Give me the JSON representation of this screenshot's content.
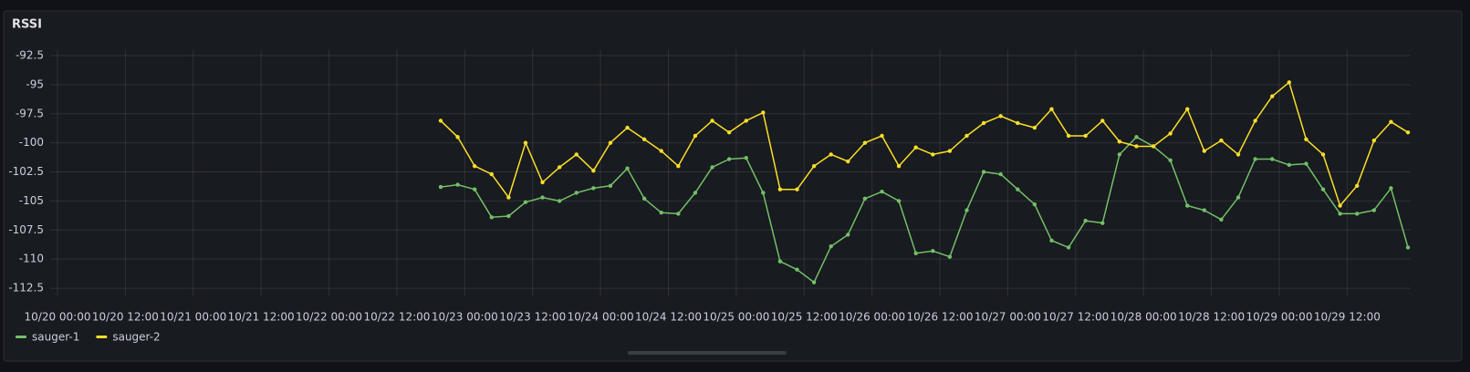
{
  "chart_data": {
    "type": "line",
    "title": "RSSI",
    "x": [
      "10/22 19:45",
      "10/22 22:45",
      "10/23 01:45",
      "10/23 04:45",
      "10/23 07:45",
      "10/23 10:45",
      "10/23 13:45",
      "10/23 16:45",
      "10/23 19:45",
      "10/23 22:45",
      "10/24 01:45",
      "10/24 04:45",
      "10/24 07:45",
      "10/24 10:45",
      "10/24 13:45",
      "10/24 16:45",
      "10/24 19:45",
      "10/24 22:45",
      "10/25 01:45",
      "10/25 04:45",
      "10/25 07:45",
      "10/25 10:45",
      "10/25 13:45",
      "10/25 16:45",
      "10/25 19:45",
      "10/25 22:45",
      "10/26 01:45",
      "10/26 04:45",
      "10/26 07:45",
      "10/26 10:45",
      "10/26 13:45",
      "10/26 16:45",
      "10/26 19:45",
      "10/26 22:45",
      "10/27 01:45",
      "10/27 04:45",
      "10/27 07:45",
      "10/27 10:45",
      "10/27 13:45",
      "10/27 16:45",
      "10/27 19:45",
      "10/27 22:45",
      "10/28 01:45",
      "10/28 04:45",
      "10/28 07:45",
      "10/28 10:45",
      "10/28 13:45",
      "10/28 16:45",
      "10/28 19:45",
      "10/28 22:45",
      "10/29 01:45",
      "10/29 04:45",
      "10/29 07:45",
      "10/29 10:45",
      "10/29 13:45",
      "10/29 16:45",
      "10/29 19:45",
      "10/29 22:45"
    ],
    "series": [
      {
        "name": "sauger-1",
        "color": "#73bf69",
        "values": [
          -103.8,
          -103.6,
          -104.0,
          -106.4,
          -106.3,
          -105.1,
          -104.7,
          -105.0,
          -104.3,
          -103.9,
          -103.7,
          -102.2,
          -104.8,
          -106.0,
          -106.1,
          -104.3,
          -102.1,
          -101.4,
          -101.3,
          -104.3,
          -110.2,
          -110.9,
          -112.0,
          -108.9,
          -107.9,
          -104.8,
          -104.2,
          -105.0,
          -109.5,
          -109.3,
          -109.8,
          -105.8,
          -102.5,
          -102.7,
          -104.0,
          -105.3,
          -108.4,
          -109.0,
          -106.7,
          -106.9,
          -101.0,
          -99.5,
          -100.3,
          -101.5,
          -105.4,
          -105.8,
          -106.6,
          -104.7,
          -101.4,
          -101.4,
          -101.9,
          -101.8,
          -104.0,
          -106.1,
          -106.1,
          -105.8,
          -103.9,
          -109.0
        ]
      },
      {
        "name": "sauger-2",
        "color": "#fade2a",
        "values": [
          -98.1,
          -99.5,
          -102.0,
          -102.7,
          -104.7,
          -100.0,
          -103.4,
          -102.1,
          -101.0,
          -102.4,
          -100.0,
          -98.7,
          -99.7,
          -100.7,
          -102.0,
          -99.4,
          -98.1,
          -99.1,
          -98.1,
          -97.4,
          -104.0,
          -104.0,
          -102.0,
          -101.0,
          -101.6,
          -100.0,
          -99.4,
          -102.0,
          -100.4,
          -101.0,
          -100.7,
          -99.4,
          -98.3,
          -97.7,
          -98.3,
          -98.7,
          -97.1,
          -99.4,
          -99.4,
          -98.1,
          -99.9,
          -100.3,
          -100.3,
          -99.2,
          -97.1,
          -100.7,
          -99.8,
          -101.0,
          -98.1,
          -96.0,
          -94.8,
          -99.7,
          -101.0,
          -105.4,
          -103.7,
          -99.8,
          -98.2,
          -99.1
        ]
      }
    ],
    "xlim": [
      "10/20 00:00",
      "10/29 22:45"
    ],
    "xticks": [
      "10/20 00:00",
      "10/20 12:00",
      "10/21 00:00",
      "10/21 12:00",
      "10/22 00:00",
      "10/22 12:00",
      "10/23 00:00",
      "10/23 12:00",
      "10/24 00:00",
      "10/24 12:00",
      "10/25 00:00",
      "10/25 12:00",
      "10/26 00:00",
      "10/26 12:00",
      "10/27 00:00",
      "10/27 12:00",
      "10/28 00:00",
      "10/28 12:00",
      "10/29 00:00",
      "10/29 12:00"
    ],
    "ylim": [
      -113.2,
      -92
    ],
    "yticks": [
      -92.5,
      -95,
      -97.5,
      -100,
      -102.5,
      -105,
      -107.5,
      -110,
      -112.5
    ],
    "grid": true
  }
}
